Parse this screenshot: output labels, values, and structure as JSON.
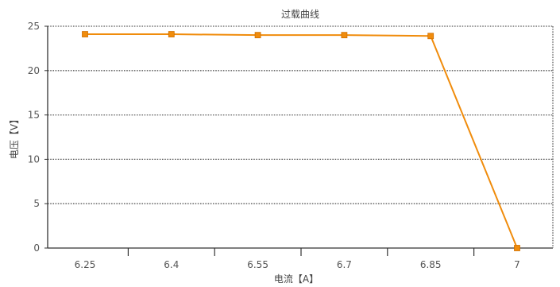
{
  "chart_data": {
    "type": "line",
    "title": "过载曲线",
    "xlabel": "电流【A】",
    "ylabel": "电压【V】",
    "categories": [
      "6.25",
      "6.4",
      "6.55",
      "6.7",
      "6.85",
      "7"
    ],
    "series": [
      {
        "values": [
          24.1,
          24.1,
          24.0,
          24.0,
          23.9,
          0
        ]
      }
    ],
    "ylim": [
      0,
      25
    ],
    "yticks": [
      0,
      5,
      10,
      15,
      20,
      25
    ],
    "grid": true,
    "colors": {
      "line": "#f08c0c",
      "marker": "#f08c0c",
      "grid": "#5a5a5a",
      "axis": "#333333"
    }
  }
}
